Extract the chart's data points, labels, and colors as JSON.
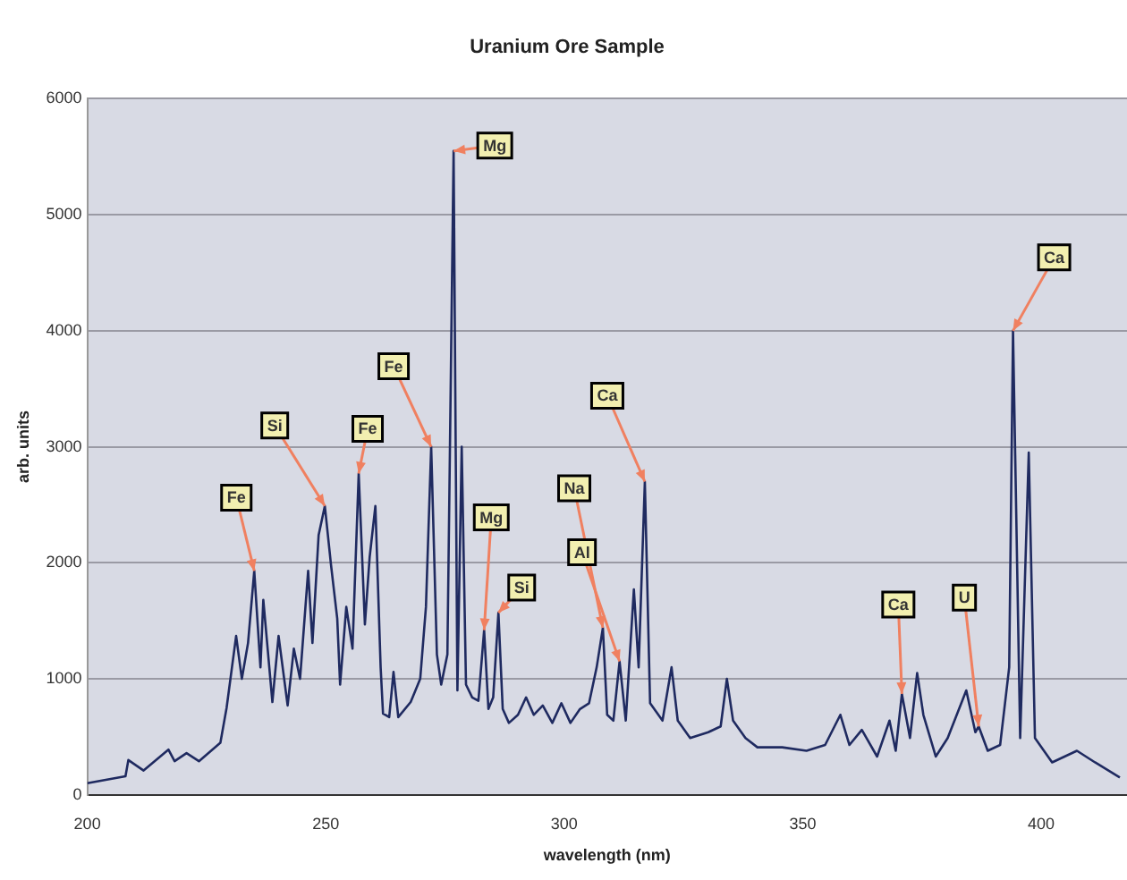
{
  "chart_data": {
    "type": "line",
    "title": "Uranium Ore Sample",
    "xlabel": "wavelength (nm)",
    "ylabel": "arb. units",
    "xlim": [
      200,
      418
    ],
    "xticks": [
      200,
      250,
      300,
      350,
      400
    ],
    "ylim": [
      0,
      6000
    ],
    "yticks": [
      0,
      1000,
      2000,
      3000,
      4000,
      5000,
      6000
    ],
    "grid": "y",
    "legend": false,
    "marker": "none",
    "series": [
      {
        "color": "#1f2a60",
        "x": [
          200,
          208,
          208.6,
          211.8,
          217,
          218.3,
          220.8,
          223.4,
          227.9,
          229.2,
          231.2,
          232.4,
          233.7,
          235,
          236.3,
          236.9,
          238.8,
          240.1,
          242,
          243.3,
          244.6,
          246.3,
          247.2,
          248.5,
          249.8,
          251.1,
          252.4,
          253,
          254.3,
          255.6,
          256.9,
          258.2,
          259.2,
          260.4,
          261.5,
          262,
          263.3,
          264.2,
          265.2,
          267.8,
          269.8,
          271,
          272.1,
          273.3,
          274.2,
          275.5,
          276.8,
          277.6,
          278.5,
          279.4,
          280.7,
          282,
          283.2,
          284.1,
          285.1,
          286.2,
          287.1,
          288.4,
          290.3,
          292,
          293.6,
          295.5,
          297.5,
          299.4,
          301.3,
          303.3,
          305.2,
          306.8,
          308.1,
          309,
          310.3,
          311.6,
          312.9,
          314.6,
          315.6,
          316.9,
          318,
          320.6,
          322.5,
          323.8,
          326.4,
          330.2,
          332.8,
          334.1,
          335.4,
          338,
          340.5,
          345.7,
          350.8,
          354.7,
          357.9,
          359.8,
          362.4,
          365.6,
          368.2,
          369.5,
          370.8,
          372.5,
          374,
          375.3,
          377.9,
          380.4,
          384.3,
          386.2,
          386.9,
          388.8,
          391.4,
          393.3,
          394.1,
          395.6,
          397.4,
          398.7,
          402.3,
          407.5,
          411.3,
          416.5
        ],
        "values": [
          100,
          160,
          300,
          210,
          390,
          290,
          360,
          290,
          450,
          750,
          1370,
          1000,
          1310,
          1930,
          1100,
          1680,
          800,
          1370,
          770,
          1260,
          1000,
          1930,
          1310,
          2240,
          2490,
          1980,
          1520,
          950,
          1620,
          1260,
          2770,
          1470,
          2050,
          2490,
          1100,
          700,
          670,
          1060,
          670,
          800,
          1000,
          1620,
          3000,
          1210,
          950,
          1210,
          5550,
          900,
          3000,
          950,
          840,
          810,
          1420,
          740,
          840,
          1570,
          740,
          620,
          690,
          840,
          690,
          770,
          620,
          790,
          620,
          740,
          790,
          1100,
          1440,
          690,
          640,
          1150,
          640,
          1770,
          1100,
          2700,
          790,
          640,
          1100,
          640,
          490,
          540,
          590,
          1000,
          640,
          490,
          410,
          410,
          380,
          430,
          690,
          430,
          560,
          330,
          640,
          380,
          870,
          490,
          1050,
          690,
          330,
          490,
          900,
          540,
          590,
          380,
          430,
          1100,
          4000,
          490,
          2950,
          490,
          280,
          380,
          280,
          150
        ]
      }
    ],
    "annotations": [
      {
        "text": "Fe",
        "x": 235,
        "y": 1930
      },
      {
        "text": "Si",
        "x": 249.8,
        "y": 2490
      },
      {
        "text": "Fe",
        "x": 256.9,
        "y": 2770
      },
      {
        "text": "Fe",
        "x": 272.1,
        "y": 3000
      },
      {
        "text": "Mg",
        "x": 276.8,
        "y": 5550
      },
      {
        "text": "Mg",
        "x": 283.2,
        "y": 1420
      },
      {
        "text": "Si",
        "x": 286.2,
        "y": 1570
      },
      {
        "text": "Na",
        "x": 308.1,
        "y": 1440
      },
      {
        "text": "Al",
        "x": 311.6,
        "y": 1150
      },
      {
        "text": "Ca",
        "x": 316.9,
        "y": 2700
      },
      {
        "text": "Ca",
        "x": 370.8,
        "y": 870
      },
      {
        "text": "U",
        "x": 386.9,
        "y": 590
      },
      {
        "text": "Ca",
        "x": 394.1,
        "y": 4000
      }
    ]
  }
}
